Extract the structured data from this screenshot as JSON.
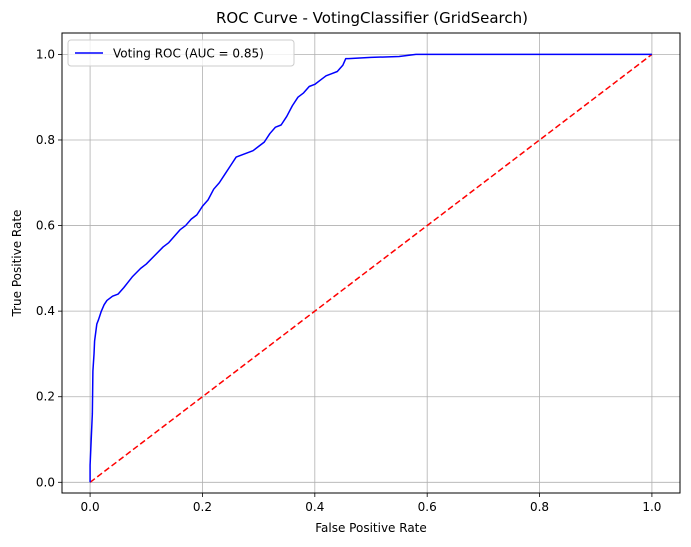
{
  "chart_data": {
    "type": "line",
    "title": "ROC Curve - VotingClassifier (GridSearch)",
    "xlabel": "False Positive Rate",
    "ylabel": "True Positive Rate",
    "xlim": [
      -0.05,
      1.05
    ],
    "ylim": [
      -0.025,
      1.05
    ],
    "xticks": [
      0.0,
      0.2,
      0.4,
      0.6,
      0.8,
      1.0
    ],
    "yticks": [
      0.0,
      0.2,
      0.4,
      0.6,
      0.8,
      1.0
    ],
    "xtick_labels": [
      "0.0",
      "0.2",
      "0.4",
      "0.6",
      "0.8",
      "1.0"
    ],
    "ytick_labels": [
      "0.0",
      "0.2",
      "0.4",
      "0.6",
      "0.8",
      "1.0"
    ],
    "grid": true,
    "legend_position": "top-left",
    "series": [
      {
        "name": "Voting ROC (AUC = 0.85)",
        "color": "#0000ff",
        "linestyle": "solid",
        "x": [
          0.0,
          0.0,
          0.002,
          0.004,
          0.005,
          0.007,
          0.008,
          0.01,
          0.012,
          0.015,
          0.02,
          0.025,
          0.03,
          0.04,
          0.05,
          0.06,
          0.075,
          0.09,
          0.1,
          0.115,
          0.13,
          0.14,
          0.15,
          0.16,
          0.17,
          0.18,
          0.19,
          0.2,
          0.21,
          0.22,
          0.23,
          0.24,
          0.25,
          0.26,
          0.27,
          0.28,
          0.29,
          0.3,
          0.31,
          0.32,
          0.33,
          0.34,
          0.35,
          0.36,
          0.37,
          0.38,
          0.39,
          0.4,
          0.41,
          0.42,
          0.43,
          0.44,
          0.45,
          0.455,
          0.46,
          0.5,
          0.55,
          0.58,
          0.6,
          0.7,
          0.8,
          0.9,
          1.0
        ],
        "y": [
          0.0,
          0.04,
          0.1,
          0.16,
          0.26,
          0.3,
          0.33,
          0.35,
          0.37,
          0.38,
          0.4,
          0.415,
          0.425,
          0.435,
          0.44,
          0.455,
          0.48,
          0.5,
          0.51,
          0.53,
          0.55,
          0.56,
          0.575,
          0.59,
          0.6,
          0.615,
          0.625,
          0.645,
          0.66,
          0.685,
          0.7,
          0.72,
          0.74,
          0.76,
          0.765,
          0.77,
          0.775,
          0.785,
          0.795,
          0.815,
          0.83,
          0.835,
          0.855,
          0.88,
          0.9,
          0.91,
          0.925,
          0.93,
          0.94,
          0.95,
          0.955,
          0.96,
          0.975,
          0.99,
          0.99,
          0.993,
          0.995,
          1.0,
          1.0,
          1.0,
          1.0,
          1.0,
          1.0
        ]
      },
      {
        "name": "",
        "color": "#ff0000",
        "linestyle": "dashed",
        "x": [
          0.0,
          1.0
        ],
        "y": [
          0.0,
          1.0
        ]
      }
    ]
  }
}
